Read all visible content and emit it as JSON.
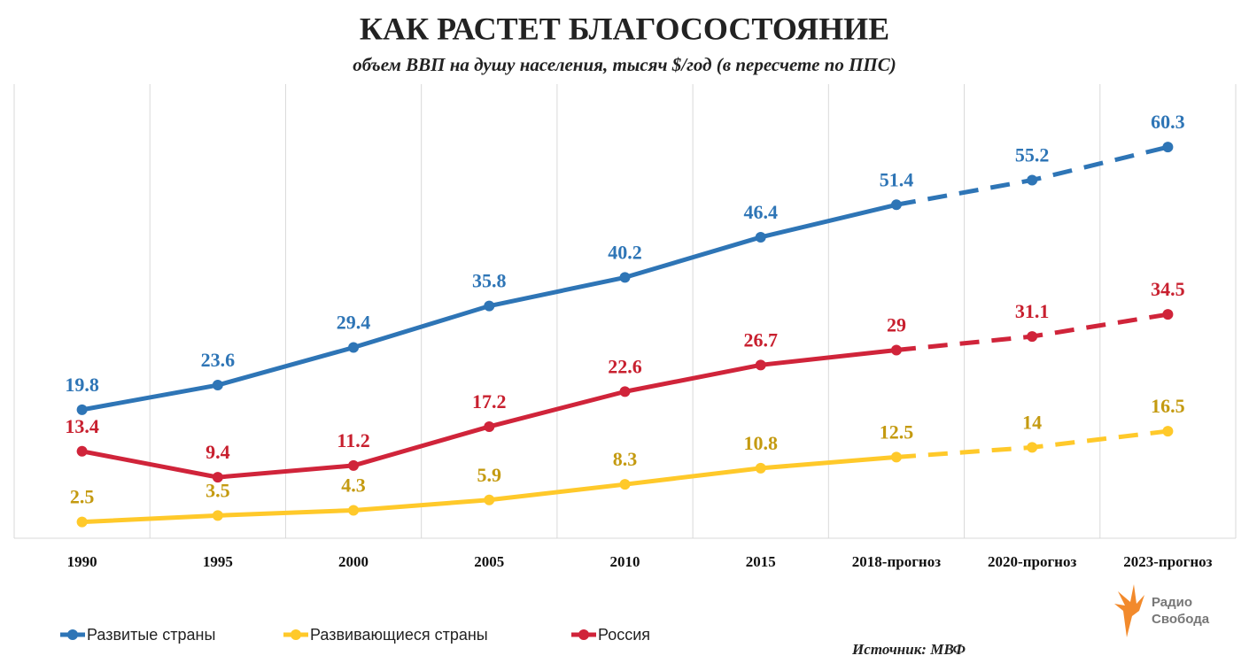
{
  "chart_data": {
    "type": "line",
    "title": "КАК РАСТЕТ БЛАГОСОСТОЯНИЕ",
    "subtitle": "объем ВВП на душу населения, тысяч $/год (в пересчете по ППС)",
    "categories": [
      "1990",
      "1995",
      "2000",
      "2005",
      "2010",
      "2015",
      "2018-прогноз",
      "2020-прогноз",
      "2023-прогноз"
    ],
    "series": [
      {
        "name": "Развитые страны",
        "color": "#2e75b6",
        "label_color": "#2e75b6",
        "values": [
          19.8,
          23.6,
          29.4,
          35.8,
          40.2,
          46.4,
          51.4,
          55.2,
          60.3
        ]
      },
      {
        "name": "Развивающиеся страны",
        "color": "#ffc92a",
        "label_color": "#c49a10",
        "values": [
          2.5,
          3.5,
          4.3,
          5.9,
          8.3,
          10.8,
          12.5,
          14,
          16.5
        ]
      },
      {
        "name": "Россия",
        "color": "#d0243a",
        "label_color": "#c8202f",
        "values": [
          13.4,
          9.4,
          11.2,
          17.2,
          22.6,
          26.7,
          29,
          31.1,
          34.5
        ]
      }
    ],
    "forecast_from": 6,
    "ylim": [
      0,
      70
    ],
    "grid": true,
    "legend": "bottom-left",
    "source": "Источник: МВФ",
    "logo": [
      "Радио",
      "Свобода"
    ]
  }
}
